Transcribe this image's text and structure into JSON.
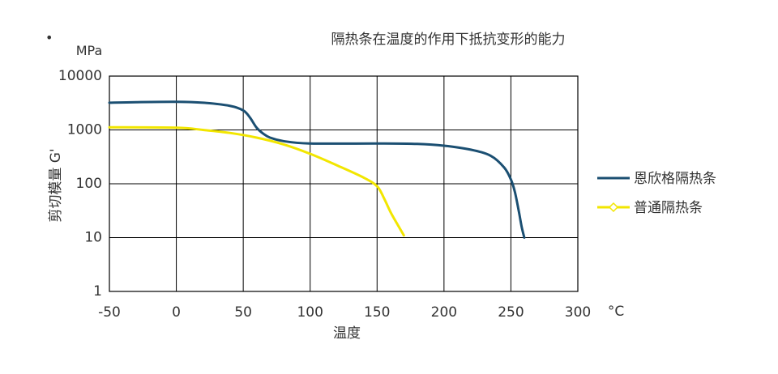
{
  "bullet": "•",
  "chart_data": {
    "type": "line",
    "title": "隔热条在温度的作用下抵抗变形的能力",
    "ylabel": "剪切模量 G'",
    "yunit": "MPa",
    "xlabel": "温度",
    "xunit": "°C",
    "xlim": [
      -50,
      300
    ],
    "ylim": [
      1,
      10000
    ],
    "yscale": "log",
    "xticks": [
      -50,
      0,
      50,
      100,
      150,
      200,
      250,
      300
    ],
    "xtick_labels": [
      "-50",
      "0",
      "50",
      "100",
      "150",
      "200",
      "250",
      "300"
    ],
    "yticks": [
      1,
      10,
      100,
      1000,
      10000
    ],
    "ytick_labels": [
      "1",
      "10",
      "100",
      "1000",
      "10000"
    ],
    "grid": true,
    "legend_position": "right",
    "series": [
      {
        "name": "恩欣格隔热条",
        "color": "#1b4f72",
        "marker": "none",
        "x": [
          -50,
          -30,
          0,
          20,
          40,
          50,
          55,
          60,
          65,
          70,
          80,
          100,
          150,
          180,
          200,
          220,
          235,
          245,
          250,
          253,
          256,
          258,
          260
        ],
        "y": [
          3200,
          3280,
          3330,
          3200,
          2800,
          2300,
          1700,
          1100,
          850,
          720,
          620,
          560,
          560,
          550,
          510,
          430,
          330,
          200,
          120,
          70,
          30,
          16,
          10
        ]
      },
      {
        "name": "普通隔热条",
        "color": "#f2e600",
        "marker": "diamond",
        "x": [
          -50,
          0,
          20,
          40,
          60,
          80,
          100,
          120,
          140,
          150,
          155,
          160,
          165,
          170
        ],
        "y": [
          1120,
          1100,
          1000,
          880,
          720,
          540,
          360,
          220,
          130,
          90,
          55,
          30,
          18,
          11
        ]
      }
    ]
  }
}
